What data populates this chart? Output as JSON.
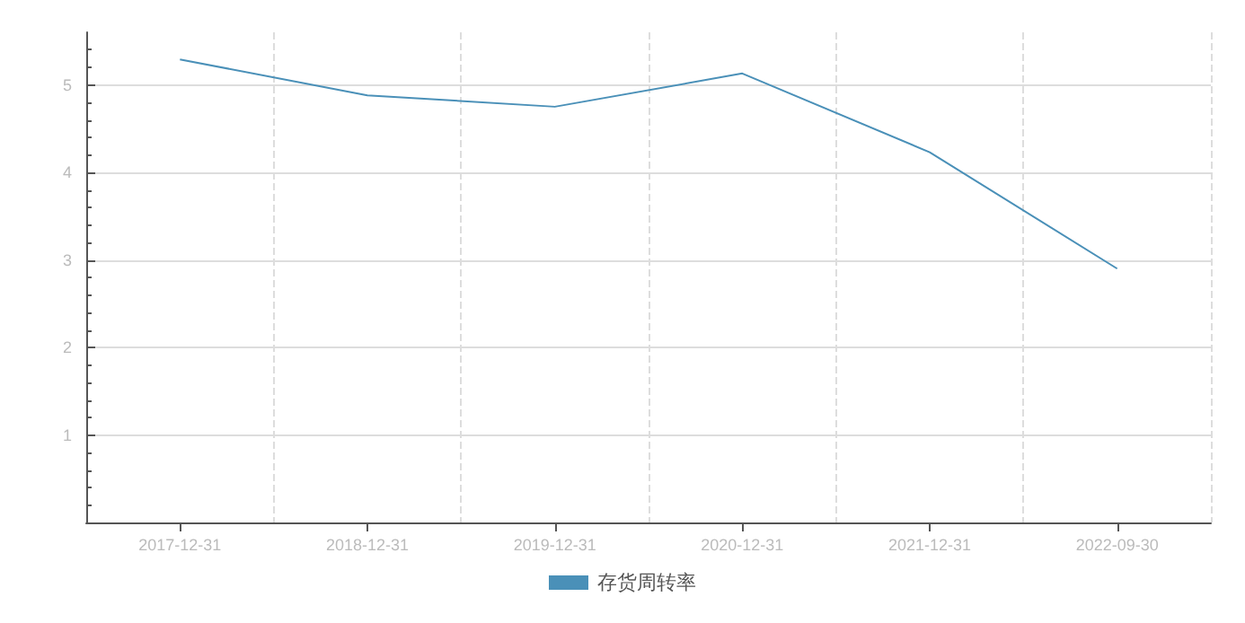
{
  "chart_data": {
    "type": "line",
    "categories": [
      "2017-12-31",
      "2018-12-31",
      "2019-12-31",
      "2020-12-31",
      "2021-12-31",
      "2022-09-30"
    ],
    "series": [
      {
        "name": "存货周转率",
        "color": "#4a90b8",
        "values": [
          5.29,
          4.88,
          4.75,
          5.13,
          4.23,
          2.9
        ]
      }
    ],
    "ylim": [
      0,
      5.6
    ],
    "yticks": [
      {
        "value": 0,
        "label": null
      },
      1,
      2,
      3,
      4,
      5
    ],
    "grid": true,
    "legend": "bottom",
    "marker": "none"
  }
}
